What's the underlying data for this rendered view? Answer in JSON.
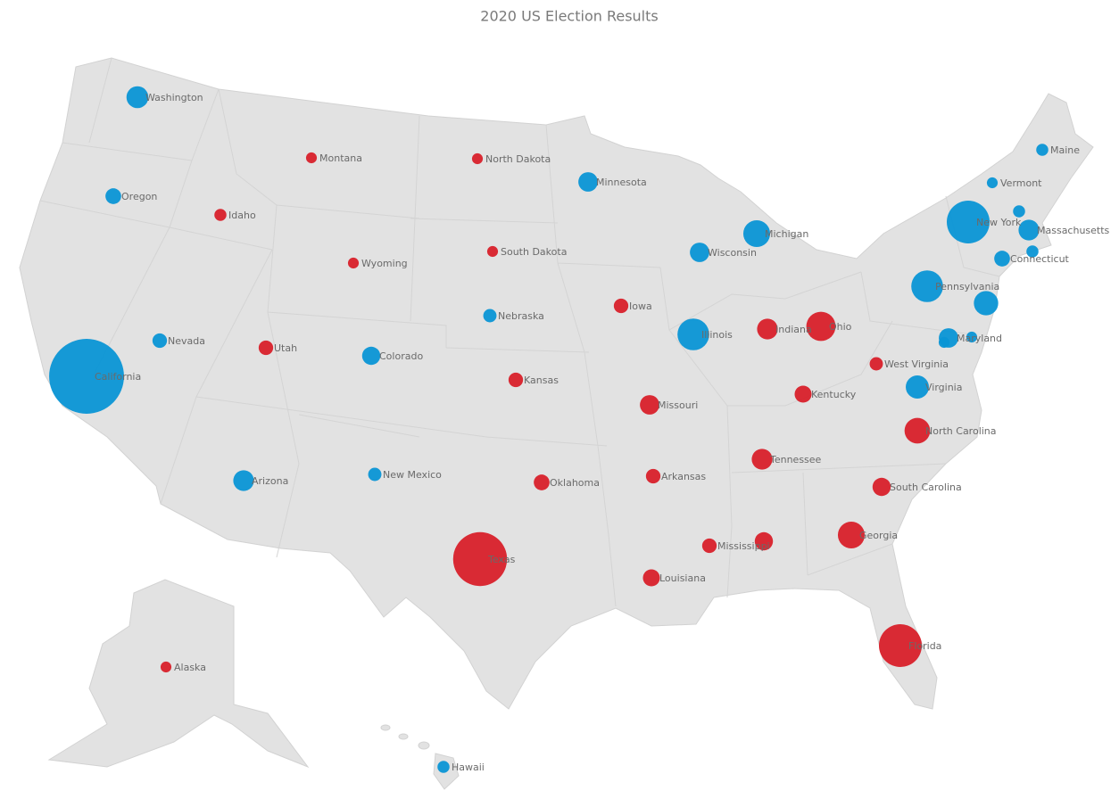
{
  "chart_data": {
    "type": "bubble-map",
    "title": "2020 US Election Results",
    "series": [
      {
        "color": "#0a95d5",
        "categories": [
          "Washington",
          "Oregon",
          "California",
          "Nevada",
          "Arizona",
          "Colorado",
          "New Mexico",
          "Nebraska",
          "Minnesota",
          "Wisconsin",
          "Michigan",
          "Illinois",
          "Virginia",
          "Maryland",
          null,
          null,
          "Pennsylvania",
          null,
          "New York",
          "Connecticut",
          null,
          "Massachusetts",
          null,
          "Vermont",
          "Maine",
          "Hawaii"
        ],
        "values": [
          12,
          7,
          55,
          6,
          11,
          9,
          5,
          5,
          10,
          10,
          16,
          20,
          13,
          10,
          3,
          3,
          20,
          14,
          29,
          7,
          4,
          11,
          4,
          3,
          4,
          4
        ]
      },
      {
        "color": "#d8202a",
        "categories": [
          "Montana",
          "Idaho",
          "Wyoming",
          "Utah",
          "North Dakota",
          "South Dakota",
          "Kansas",
          "Oklahoma",
          "Texas",
          "Iowa",
          "Missouri",
          "Arkansas",
          "Louisiana",
          "Mississippi",
          null,
          "Tennessee",
          "Kentucky",
          "Indiana",
          "Ohio",
          "West Virginia",
          "North Carolina",
          "South Carolina",
          "Georgia",
          "Florida",
          "Alaska"
        ],
        "values": [
          3,
          4,
          3,
          6,
          3,
          3,
          6,
          7,
          38,
          6,
          10,
          6,
          8,
          6,
          9,
          11,
          8,
          11,
          18,
          5,
          15,
          9,
          16,
          29,
          3
        ]
      }
    ]
  }
}
